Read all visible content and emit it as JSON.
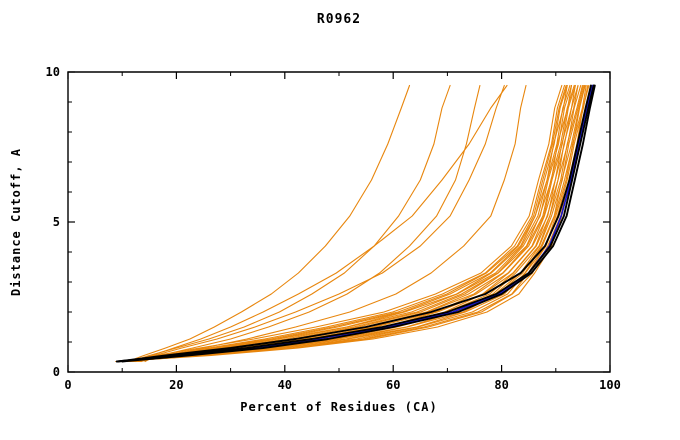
{
  "chart_data": {
    "type": "line",
    "title": "R0962",
    "xlabel": "Percent of Residues (CA)",
    "ylabel": "Distance Cutoff, A",
    "xlim": [
      0,
      100
    ],
    "ylim": [
      0,
      10
    ],
    "x_ticks": [
      0,
      20,
      40,
      60,
      80,
      100
    ],
    "x_tick_labels": [
      "0",
      "20",
      "40",
      "60",
      "80",
      "100"
    ],
    "y_ticks": [
      0,
      5,
      10
    ],
    "y_tick_labels": [
      "0",
      "5",
      "10"
    ],
    "x_minor_ticks": [
      10,
      30,
      50,
      70,
      90
    ],
    "y_minor_ticks": [
      1,
      2,
      3,
      4,
      6,
      7,
      8,
      9
    ],
    "grid": false,
    "legend": null,
    "palette": {
      "orange": "#e8860d",
      "black": "#000000",
      "blue": "#1515cd"
    },
    "line_widths": {
      "orange": 1.1,
      "black": 1.9,
      "blue": 1.6
    },
    "y_levels": [
      0.35,
      0.55,
      0.8,
      1.1,
      1.5,
      2.0,
      2.6,
      3.3,
      4.2,
      5.2,
      6.4,
      7.6,
      8.8,
      9.55
    ],
    "series": [
      {
        "color": "orange",
        "x": [
          8.8,
          26.4,
          42.5,
          56.3,
          68.2,
          77.3,
          83.2,
          86.1,
          89.2,
          91.1,
          92.6,
          94.1,
          95.6,
          96.4
        ]
      },
      {
        "color": "orange",
        "x": [
          9.6,
          25.1,
          41.5,
          55.2,
          66.5,
          76.3,
          82.0,
          85.7,
          88.5,
          90.9,
          92.4,
          93.9,
          95.0,
          96.1
        ]
      },
      {
        "color": "orange",
        "x": [
          9.2,
          25.3,
          40.1,
          54.4,
          65.7,
          75.6,
          81.9,
          84.9,
          88.2,
          90.3,
          92.1,
          93.4,
          95.1,
          95.9
        ]
      },
      {
        "color": "orange",
        "x": [
          9.9,
          24.3,
          39.8,
          53.2,
          64.6,
          74.6,
          81.1,
          84.4,
          88.1,
          90.0,
          91.9,
          93.1,
          94.9,
          95.6
        ]
      },
      {
        "color": "orange",
        "x": [
          10.2,
          24.5,
          38.5,
          51.7,
          64.3,
          73.3,
          80.5,
          84.3,
          87.5,
          89.8,
          91.6,
          93.2,
          94.4,
          95.4
        ]
      },
      {
        "color": "orange",
        "x": [
          10.0,
          23.9,
          38.2,
          51.2,
          62.6,
          72.9,
          79.3,
          83.9,
          87.3,
          89.7,
          91.1,
          92.9,
          94.3,
          95.3
        ]
      },
      {
        "color": "orange",
        "x": [
          10.1,
          23.6,
          37.4,
          49.8,
          62.4,
          71.6,
          78.8,
          83.5,
          87.0,
          89.2,
          91.2,
          92.4,
          94.1,
          95.1
        ]
      },
      {
        "color": "orange",
        "x": [
          10.8,
          22.5,
          36.5,
          49.3,
          60.7,
          71.2,
          78.4,
          82.6,
          86.9,
          88.9,
          90.9,
          92.1,
          93.9,
          94.9
        ]
      },
      {
        "color": "orange",
        "x": [
          10.5,
          22.7,
          35.2,
          48.4,
          60.4,
          69.9,
          77.8,
          82.2,
          86.4,
          88.9,
          90.4,
          92.2,
          93.4,
          94.6
        ]
      },
      {
        "color": "orange",
        "x": [
          11.3,
          21.6,
          34.9,
          47.3,
          58.7,
          69.5,
          76.6,
          82.1,
          86.3,
          88.4,
          90.4,
          91.5,
          93.3,
          94.1
        ]
      },
      {
        "color": "orange",
        "x": [
          11.0,
          21.8,
          34.2,
          45.8,
          58.4,
          68.2,
          76.5,
          81.3,
          85.7,
          88.5,
          89.9,
          91.6,
          92.9,
          94.1
        ]
      },
      {
        "color": "orange",
        "x": [
          11.7,
          20.7,
          33.3,
          45.3,
          56.7,
          67.8,
          75.3,
          81.2,
          85.6,
          87.9,
          89.9,
          91.1,
          92.9,
          93.6
        ]
      },
      {
        "color": "orange",
        "x": [
          11.5,
          20.8,
          31.8,
          44.2,
          56.2,
          66.3,
          74.9,
          80.3,
          85.0,
          87.8,
          89.3,
          91.2,
          92.3,
          93.6
        ]
      },
      {
        "color": "orange",
        "x": [
          12.2,
          20.3,
          31.1,
          43.3,
          54.7,
          66.1,
          73.9,
          80.2,
          84.7,
          87.6,
          89.1,
          90.9,
          92.1,
          93.4
        ]
      },
      {
        "color": "orange",
        "x": [
          12.0,
          19.9,
          30.8,
          42.2,
          53.6,
          65.1,
          73.2,
          79.4,
          84.6,
          87.0,
          89.2,
          90.3,
          92.2,
          92.9
        ]
      },
      {
        "color": "orange",
        "x": [
          12.6,
          19.4,
          29.5,
          41.3,
          52.7,
          64.4,
          72.6,
          79.3,
          84.0,
          87.1,
          88.6,
          90.5,
          91.6,
          92.9
        ]
      },
      {
        "color": "orange",
        "x": [
          12.4,
          18.9,
          29.2,
          40.2,
          51.6,
          63.4,
          71.8,
          78.9,
          83.7,
          86.7,
          88.4,
          90.2,
          91.3,
          92.6
        ]
      },
      {
        "color": "orange",
        "x": [
          13.1,
          18.5,
          28.4,
          38.8,
          51.4,
          62.1,
          71.7,
          78.1,
          83.5,
          86.2,
          88.4,
          89.6,
          91.4,
          92.1
        ]
      },
      {
        "color": "orange",
        "x": [
          12.9,
          18.0,
          27.5,
          38.3,
          49.7,
          61.7,
          70.5,
          77.9,
          83.1,
          86.2,
          87.9,
          89.7,
          90.8,
          92.1
        ]
      },
      {
        "color": "orange",
        "x": [
          13.5,
          17.2,
          26.8,
          37.4,
          48.8,
          60.9,
          69.9,
          77.2,
          82.9,
          85.9,
          87.6,
          89.4,
          90.6,
          91.9
        ]
      },
      {
        "color": "orange",
        "x": [
          13.3,
          17.1,
          25.9,
          36.3,
          47.7,
          59.9,
          69.1,
          77.0,
          82.4,
          85.6,
          87.3,
          89.2,
          90.3,
          91.6
        ]
      },
      {
        "color": "orange",
        "x": [
          14.2,
          16.3,
          24.3,
          34.3,
          45.7,
          58.3,
          67.8,
          76.2,
          81.8,
          85.1,
          86.8,
          88.7,
          89.8,
          91.1
        ]
      },
      {
        "color": "orange",
        "x": [
          11.0,
          14.0,
          18.0,
          22.5,
          27.0,
          32.0,
          37.5,
          42.5,
          47.5,
          52.0,
          56.0,
          59.0,
          61.5,
          63.0
        ]
      },
      {
        "color": "orange",
        "x": [
          11.5,
          15.0,
          20.0,
          26.0,
          32.5,
          39.0,
          45.0,
          51.0,
          56.5,
          61.0,
          65.0,
          67.5,
          69.0,
          70.5
        ]
      },
      {
        "color": "orange",
        "x": [
          12.0,
          17.0,
          23.0,
          30.0,
          37.0,
          44.5,
          51.5,
          57.5,
          63.0,
          68.0,
          71.5,
          73.5,
          75.0,
          76.0
        ]
      },
      {
        "color": "orange",
        "x": [
          12.5,
          16.0,
          21.0,
          27.5,
          34.5,
          42.0,
          50.0,
          58.0,
          65.0,
          70.5,
          74.0,
          77.0,
          79.0,
          80.5
        ]
      },
      {
        "color": "orange",
        "x": [
          13.0,
          18.0,
          25.0,
          33.0,
          42.0,
          52.0,
          60.5,
          67.0,
          73.0,
          78.0,
          80.5,
          82.5,
          83.5,
          84.5
        ]
      },
      {
        "color": "orange",
        "x": [
          12.0,
          15.5,
          19.5,
          24.5,
          30.0,
          36.0,
          42.5,
          49.5,
          56.5,
          63.5,
          69.0,
          74.0,
          78.0,
          81.0
        ]
      },
      {
        "color": "blue",
        "x": [
          9.0,
          21.0,
          34.0,
          46.0,
          59.0,
          71.0,
          79.5,
          85.0,
          88.8,
          91.0,
          92.8,
          94.2,
          95.7,
          96.8
        ]
      },
      {
        "color": "black",
        "x": [
          9.0,
          20.0,
          33.0,
          45.0,
          58.0,
          70.0,
          79.0,
          85.0,
          89.0,
          91.5,
          93.0,
          94.5,
          96.0,
          97.0
        ]
      },
      {
        "color": "black",
        "x": [
          9.2,
          18.0,
          30.0,
          42.0,
          55.0,
          67.0,
          77.0,
          83.5,
          88.0,
          90.5,
          92.5,
          94.0,
          95.5,
          96.5
        ]
      },
      {
        "color": "black",
        "x": [
          10.0,
          22.0,
          36.0,
          48.0,
          60.0,
          72.0,
          80.0,
          85.5,
          89.5,
          92.0,
          93.5,
          95.0,
          96.3,
          97.2
        ]
      }
    ]
  }
}
